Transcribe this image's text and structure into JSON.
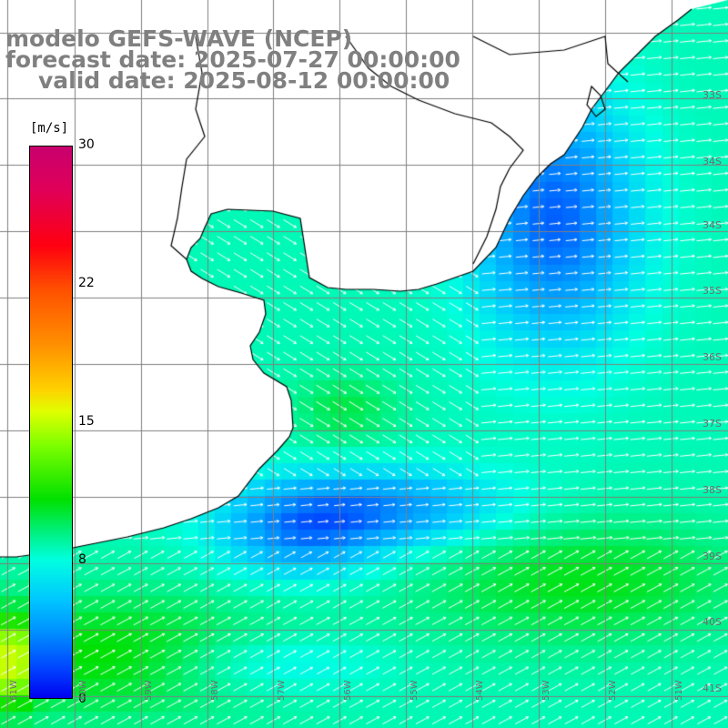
{
  "header": {
    "model": "modelo GEFS-WAVE (NCEP)",
    "forecast": "forecast date: 2025-07-27 00:00:00",
    "valid": "valid date: 2025-08-12 00:00:00"
  },
  "colorbar": {
    "unit": "[m/s]",
    "ticks": [
      "30",
      "22",
      "15",
      "8",
      "0"
    ],
    "colors": [
      "#0000f0",
      "#0040ff",
      "#0090ff",
      "#00c8ff",
      "#00ffe0",
      "#00f080",
      "#00e000",
      "#80ff00",
      "#e0ff00",
      "#ffd000",
      "#ff9000",
      "#ff5000",
      "#ff0010",
      "#e00058",
      "#c8006e"
    ]
  },
  "lat_labels": [
    "33S",
    "34S",
    "35S",
    "36S",
    "37S",
    "38S",
    "39S",
    "40S",
    "41S"
  ],
  "lon_labels": [
    "61W",
    "60W",
    "59W",
    "58W",
    "57W",
    "56W",
    "55W",
    "54W",
    "53W",
    "52W",
    "51W"
  ],
  "map_style": {
    "gridline_color": "#808080",
    "coastline_color": "#000000",
    "land_color": "#ffffff",
    "arrow_color": "#ffffff"
  },
  "field_summary": {
    "variable": "wind",
    "open_ocean_speed_range": [
      4,
      15
    ],
    "peak_south_west": "yellow-green ~13 m/s",
    "calm_core_east": "blue ~3 m/s"
  }
}
